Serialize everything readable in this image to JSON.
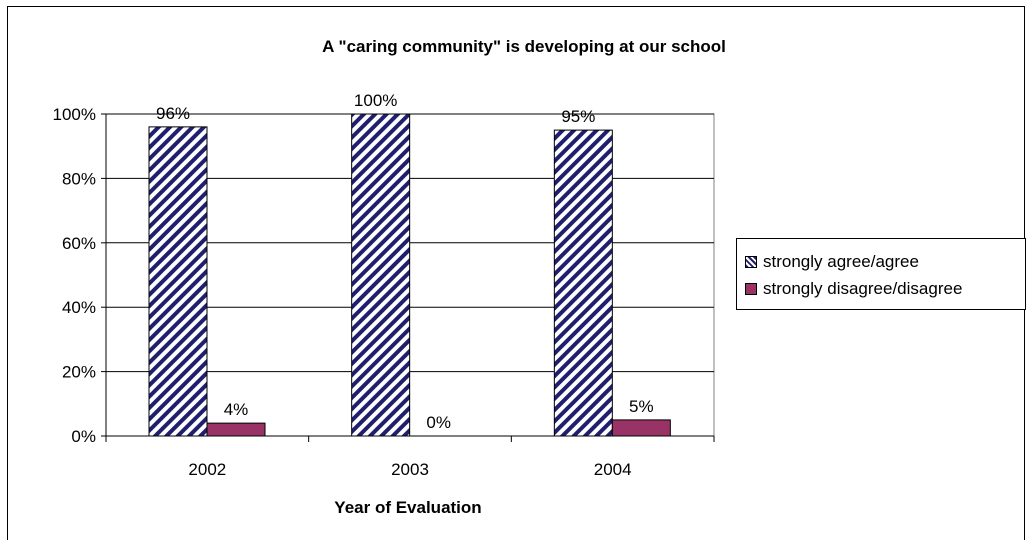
{
  "chart_data": {
    "type": "bar",
    "title": "A \"caring community\" is developing at our school",
    "xlabel": "Year of Evaluation",
    "ylabel": "",
    "categories": [
      "2002",
      "2003",
      "2004"
    ],
    "ylim": [
      0,
      100
    ],
    "yticks": [
      0,
      20,
      40,
      60,
      80,
      100
    ],
    "ytick_labels": [
      "0%",
      "20%",
      "40%",
      "60%",
      "80%",
      "100%"
    ],
    "grid": true,
    "legend_position": "right",
    "series": [
      {
        "name": "strongly agree/agree",
        "values": [
          96,
          100,
          95
        ],
        "labels": [
          "96%",
          "100%",
          "95%"
        ],
        "pattern": "diagonal-hatch",
        "color": "#1f1f6e"
      },
      {
        "name": "strongly disagree/disagree",
        "values": [
          4,
          0,
          5
        ],
        "labels": [
          "4%",
          "0%",
          "5%"
        ],
        "pattern": "solid",
        "color": "#993366"
      }
    ]
  }
}
